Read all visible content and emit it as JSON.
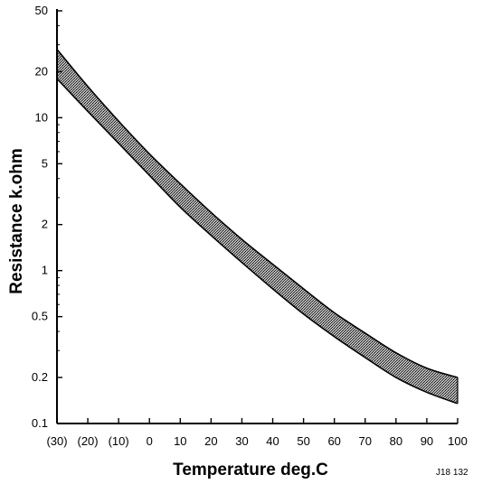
{
  "chart_data": {
    "type": "area",
    "title": "",
    "xlabel": "Temperature deg.C",
    "ylabel": "Resistance k.ohm",
    "y_scale": "log",
    "ylim": [
      0.1,
      50
    ],
    "xlim": [
      -30,
      100
    ],
    "grid": false,
    "x_ticks": [
      -30,
      -20,
      -10,
      0,
      10,
      20,
      30,
      40,
      50,
      60,
      70,
      80,
      90,
      100
    ],
    "x_tick_labels": [
      "(30)",
      "(20)",
      "(10)",
      "0",
      "10",
      "20",
      "30",
      "40",
      "50",
      "60",
      "70",
      "80",
      "90",
      "100"
    ],
    "y_ticks": [
      0.1,
      0.2,
      0.5,
      1,
      2,
      5,
      10,
      20,
      50
    ],
    "y_tick_labels": [
      "0.1",
      "0.2",
      "0.5",
      "1",
      "2",
      "5",
      "10",
      "20",
      "50"
    ],
    "series": [
      {
        "x": [
          -30,
          -20,
          -10,
          0,
          10,
          20,
          30,
          40,
          50,
          60,
          70,
          80,
          90,
          100
        ],
        "upper": [
          28,
          16,
          9.5,
          5.8,
          3.7,
          2.4,
          1.6,
          1.1,
          0.76,
          0.53,
          0.39,
          0.29,
          0.23,
          0.2
        ],
        "lower": [
          18,
          11,
          6.8,
          4.2,
          2.6,
          1.7,
          1.13,
          0.76,
          0.52,
          0.37,
          0.27,
          0.2,
          0.16,
          0.135
        ]
      }
    ],
    "annotations": [
      "J18 132"
    ]
  },
  "colors": {
    "band_fill": "#8c8c8c",
    "band_edge": "#000000",
    "axis": "#000000"
  }
}
